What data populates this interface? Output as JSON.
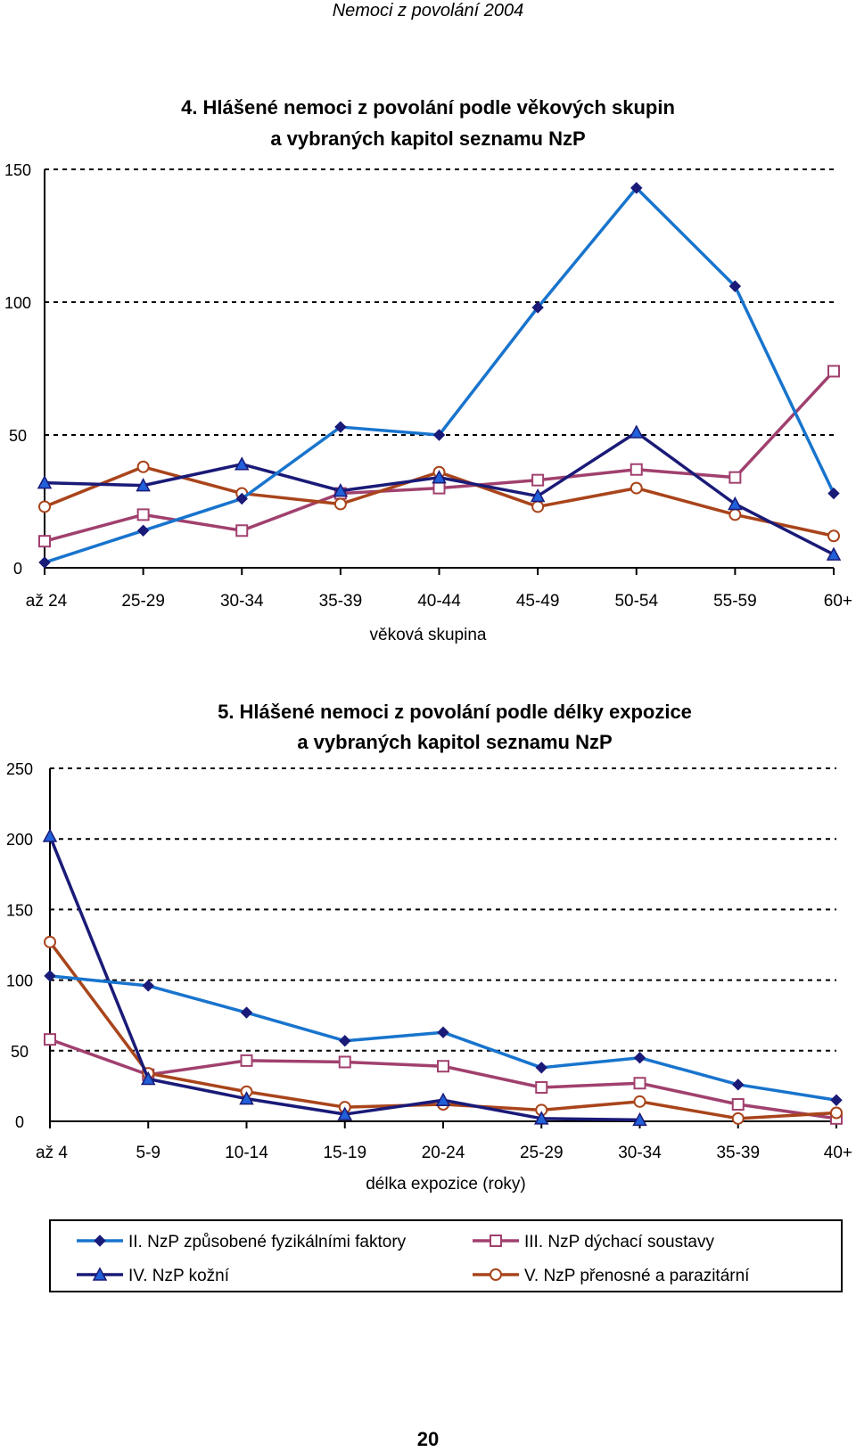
{
  "header": {
    "title": "Nemoci z povolání 2004"
  },
  "page": {
    "number": "20"
  },
  "colors": {
    "II": "#1874CD",
    "III": "#A0406E",
    "IV": "#1A1A78",
    "V": "#A9441B"
  },
  "legend": {
    "items": [
      {
        "key": "II",
        "label": "II.  NzP způsobené fyzikálními faktory",
        "marker": "diamond"
      },
      {
        "key": "III",
        "label": "III. NzP dýchací soustavy",
        "marker": "square"
      },
      {
        "key": "IV",
        "label": "IV. NzP kožní",
        "marker": "triangle"
      },
      {
        "key": "V",
        "label": "V. NzP přenosné a parazitární",
        "marker": "circle"
      }
    ]
  },
  "chart_data": [
    {
      "type": "line",
      "title_line1": "4. Hlášené nemoci z povolání podle věkových skupin",
      "title_line2": "a vybraných kapitol seznamu NzP",
      "xlabel": "věková skupina",
      "ylabel": "",
      "ylim": [
        0,
        150
      ],
      "yticks": [
        0,
        50,
        100,
        150
      ],
      "grid": "dashed horizontal",
      "categories": [
        "až 24",
        "25-29",
        "30-34",
        "35-39",
        "40-44",
        "45-49",
        "50-54",
        "55-59",
        "60+"
      ],
      "series": [
        {
          "key": "II",
          "name": "II.  NzP způsobené fyzikálními faktory",
          "values": [
            2,
            14,
            26,
            53,
            50,
            98,
            143,
            106,
            28
          ]
        },
        {
          "key": "III",
          "name": "III. NzP dýchací soustavy",
          "values": [
            10,
            20,
            14,
            28,
            30,
            33,
            37,
            34,
            74
          ]
        },
        {
          "key": "IV",
          "name": "IV. NzP kožní",
          "values": [
            32,
            31,
            39,
            29,
            34,
            27,
            51,
            24,
            5
          ]
        },
        {
          "key": "V",
          "name": "V. NzP přenosné a parazitární",
          "values": [
            23,
            38,
            28,
            24,
            36,
            23,
            30,
            20,
            12
          ]
        }
      ]
    },
    {
      "type": "line",
      "title_line1": "5. Hlášené nemoci z povolání podle délky expozice",
      "title_line2": "a vybraných kapitol seznamu NzP",
      "xlabel": "délka expozice (roky)",
      "ylabel": "",
      "ylim": [
        0,
        250
      ],
      "yticks": [
        0,
        50,
        100,
        150,
        200,
        250
      ],
      "grid": "dashed horizontal",
      "categories": [
        "až 4",
        "5-9",
        "10-14",
        "15-19",
        "20-24",
        "25-29",
        "30-34",
        "35-39",
        "40+"
      ],
      "series": [
        {
          "key": "II",
          "name": "II.  NzP způsobené fyzikálními faktory",
          "values": [
            103,
            96,
            77,
            57,
            63,
            38,
            45,
            26,
            15
          ]
        },
        {
          "key": "III",
          "name": "III. NzP dýchací soustavy",
          "values": [
            58,
            33,
            43,
            42,
            39,
            24,
            27,
            12,
            2
          ]
        },
        {
          "key": "IV",
          "name": "IV. NzP kožní",
          "values": [
            202,
            30,
            16,
            5,
            15,
            2,
            1,
            null,
            null
          ]
        },
        {
          "key": "V",
          "name": "V. NzP přenosné a parazitární",
          "values": [
            127,
            34,
            21,
            10,
            12,
            8,
            14,
            2,
            6
          ]
        }
      ]
    }
  ]
}
